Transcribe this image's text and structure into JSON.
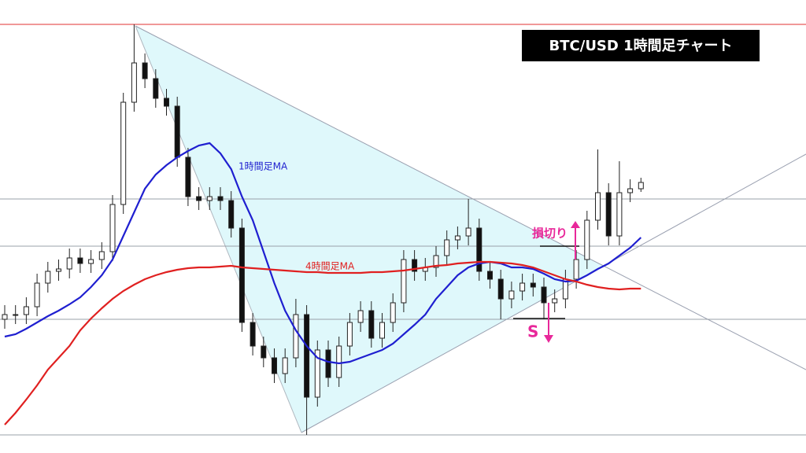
{
  "chart_data": {
    "type": "candlestick",
    "title": "BTC/USD  1時間足チャート",
    "categories": [
      null,
      null,
      null,
      null,
      null,
      null,
      null,
      null,
      null,
      null,
      null,
      null,
      null,
      null,
      null,
      null,
      null,
      null,
      null,
      null,
      null,
      null,
      null,
      null,
      null,
      null,
      null,
      null,
      null,
      null,
      null,
      null,
      null,
      null,
      null,
      null,
      null,
      null,
      null,
      null,
      null,
      null,
      null,
      null,
      null,
      null,
      null,
      null,
      null,
      null,
      null,
      null,
      null,
      null,
      null,
      null,
      null,
      null,
      null,
      null
    ],
    "open": [
      170,
      176,
      176,
      186,
      216,
      231,
      234,
      248,
      241,
      246,
      256,
      316,
      446,
      496,
      476,
      451,
      441,
      376,
      326,
      321,
      326,
      321,
      286,
      166,
      136,
      121,
      101,
      121,
      176,
      71,
      131,
      96,
      136,
      166,
      181,
      146,
      166,
      191,
      246,
      231,
      236,
      251,
      271,
      276,
      286,
      231,
      221,
      196,
      206,
      216,
      211,
      191,
      196,
      221,
      246,
      296,
      331,
      276,
      331,
      336
    ],
    "high": [
      188,
      188,
      198,
      228,
      243,
      246,
      260,
      260,
      258,
      268,
      328,
      458,
      545,
      508,
      488,
      463,
      453,
      388,
      338,
      338,
      338,
      333,
      298,
      178,
      148,
      133,
      133,
      196,
      188,
      143,
      143,
      148,
      178,
      193,
      193,
      178,
      203,
      258,
      258,
      248,
      263,
      283,
      288,
      323,
      298,
      243,
      233,
      218,
      228,
      228,
      223,
      208,
      233,
      258,
      308,
      386,
      343,
      371,
      348,
      350
    ],
    "low": [
      158,
      164,
      164,
      174,
      204,
      219,
      222,
      229,
      229,
      234,
      244,
      304,
      434,
      464,
      439,
      429,
      364,
      314,
      309,
      309,
      309,
      274,
      154,
      124,
      109,
      89,
      89,
      109,
      23,
      59,
      84,
      84,
      124,
      154,
      134,
      134,
      154,
      179,
      219,
      219,
      224,
      239,
      259,
      264,
      219,
      209,
      170,
      184,
      194,
      199,
      170,
      179,
      184,
      209,
      234,
      284,
      264,
      264,
      319,
      332
    ],
    "close": [
      176,
      176,
      186,
      216,
      231,
      234,
      248,
      241,
      246,
      256,
      316,
      446,
      496,
      476,
      451,
      441,
      376,
      326,
      321,
      326,
      321,
      286,
      166,
      136,
      121,
      101,
      121,
      176,
      71,
      131,
      96,
      136,
      166,
      181,
      146,
      166,
      191,
      246,
      231,
      236,
      251,
      271,
      276,
      286,
      231,
      221,
      196,
      206,
      216,
      211,
      191,
      196,
      221,
      246,
      296,
      331,
      276,
      331,
      336,
      344
    ],
    "series": [
      {
        "name": "1時間足MA",
        "color": "#1f1fd0",
        "values": [
          148,
          151,
          158,
          166,
          174,
          181,
          189,
          198,
          211,
          226,
          246,
          276,
          306,
          336,
          354,
          366,
          376,
          384,
          391,
          394,
          381,
          361,
          326,
          296,
          256,
          216,
          181,
          156,
          136,
          121,
          116,
          114,
          116,
          121,
          126,
          131,
          139,
          151,
          163,
          176,
          196,
          211,
          226,
          236,
          241,
          243,
          241,
          236,
          236,
          234,
          228,
          221,
          218,
          219,
          226,
          234,
          241,
          251,
          261,
          274
        ]
      },
      {
        "name": "4時間足MA",
        "color": "#e02020",
        "values": [
          36,
          51,
          68,
          86,
          106,
          121,
          136,
          156,
          171,
          184,
          196,
          206,
          214,
          221,
          226,
          230,
          233,
          235,
          236,
          236,
          237,
          238,
          236,
          235,
          234,
          233,
          232,
          231,
          230,
          230,
          229,
          229,
          229,
          229,
          230,
          230,
          231,
          232,
          234,
          236,
          238,
          239,
          241,
          242,
          243,
          243,
          242,
          241,
          239,
          236,
          231,
          226,
          221,
          218,
          214,
          211,
          209,
          208,
          209,
          209
        ]
      }
    ],
    "levels": [
      545,
      323,
      263,
      170,
      23
    ],
    "level_colors": [
      "#e03030",
      "#9aa0a8",
      "#9aa0a8",
      "#9aa0a8",
      "#9aa0a8"
    ],
    "annotations": [
      "損切り",
      "S"
    ],
    "ylim": [
      0,
      576
    ]
  }
}
